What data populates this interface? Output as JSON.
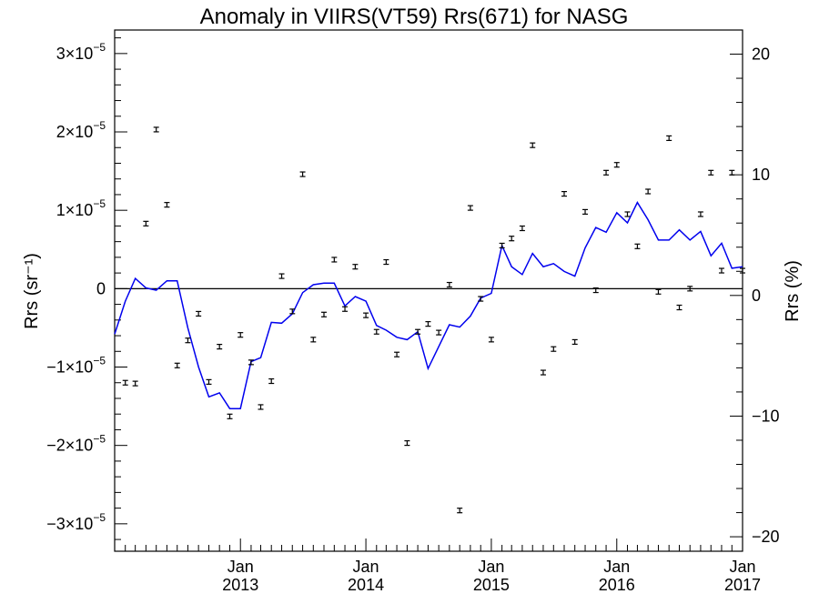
{
  "chart_data": {
    "type": "scatter",
    "title": "Anomaly in VIIRS(VT59) Rrs(671) for NASG",
    "ylabel_left": "Rrs (sr⁻¹)",
    "ylabel_right": "Rrs (%)",
    "xlabel": "",
    "xlim": [
      "2012-01-01",
      "2017-01-01"
    ],
    "ylim_left": [
      -3.35e-05,
      3.3e-05
    ],
    "ylim_right": [
      -21.2,
      22
    ],
    "x_ticks": [
      {
        "month": "Jan",
        "year": "2013",
        "date": "2013-01-01"
      },
      {
        "month": "Jan",
        "year": "2014",
        "date": "2014-01-01"
      },
      {
        "month": "Jan",
        "year": "2015",
        "date": "2015-01-01"
      },
      {
        "month": "Jan",
        "year": "2016",
        "date": "2016-01-01"
      },
      {
        "month": "Jan",
        "year": "2017",
        "date": "2017-01-01"
      }
    ],
    "y_ticks_left": [
      {
        "value": 3e-05,
        "mant": "3×10",
        "exp": "−5"
      },
      {
        "value": 2e-05,
        "mant": "2×10",
        "exp": "−5"
      },
      {
        "value": 1e-05,
        "mant": "1×10",
        "exp": "−5"
      },
      {
        "value": 0,
        "mant": "0",
        "exp": ""
      },
      {
        "value": -1e-05,
        "mant": "−1×10",
        "exp": "−5"
      },
      {
        "value": -2e-05,
        "mant": "−2×10",
        "exp": "−5"
      },
      {
        "value": -3e-05,
        "mant": "−3×10",
        "exp": "−5"
      }
    ],
    "y_ticks_right": [
      {
        "value": 20,
        "label": "20"
      },
      {
        "value": 10,
        "label": "10"
      },
      {
        "value": 0,
        "label": "0"
      },
      {
        "value": -10,
        "label": "−10"
      },
      {
        "value": -20,
        "label": "−20"
      }
    ],
    "series": [
      {
        "type": "scatter_errorbar",
        "axis": "left",
        "color": "#000000",
        "x": [
          "2012-02-01",
          "2012-03-01",
          "2012-04-01",
          "2012-05-01",
          "2012-06-01",
          "2012-07-01",
          "2012-08-01",
          "2012-09-01",
          "2012-10-01",
          "2012-11-01",
          "2012-12-01",
          "2013-01-01",
          "2013-02-01",
          "2013-03-01",
          "2013-04-01",
          "2013-05-01",
          "2013-06-01",
          "2013-07-01",
          "2013-08-01",
          "2013-09-01",
          "2013-10-01",
          "2013-11-01",
          "2013-12-01",
          "2014-01-01",
          "2014-02-01",
          "2014-03-01",
          "2014-04-01",
          "2014-05-01",
          "2014-06-01",
          "2014-07-01",
          "2014-08-01",
          "2014-09-01",
          "2014-10-01",
          "2014-11-01",
          "2014-12-01",
          "2015-01-01",
          "2015-02-01",
          "2015-03-01",
          "2015-04-01",
          "2015-05-01",
          "2015-06-01",
          "2015-07-01",
          "2015-08-01",
          "2015-09-01",
          "2015-10-01",
          "2015-11-01",
          "2015-12-01",
          "2016-01-01",
          "2016-02-01",
          "2016-03-01",
          "2016-04-01",
          "2016-05-01",
          "2016-06-01",
          "2016-07-01",
          "2016-08-01",
          "2016-09-01",
          "2016-10-01",
          "2016-11-01",
          "2016-12-01",
          "2017-01-01"
        ],
        "y": [
          -1.2e-05,
          -1.21e-05,
          8.3e-06,
          2.03e-05,
          1.07e-05,
          -9.8e-06,
          -6.6e-06,
          -3.2e-06,
          -1.19e-05,
          -7.4e-06,
          -1.63e-05,
          -5.9e-06,
          -9.4e-06,
          -1.51e-05,
          -1.18e-05,
          1.6e-06,
          -2.9e-06,
          1.46e-05,
          -6.5e-06,
          -3.3e-06,
          3.7e-06,
          -2.6e-06,
          2.8e-06,
          -3.4e-06,
          -5.5e-06,
          3.4e-06,
          -8.4e-06,
          -1.97e-05,
          -5.5e-06,
          -4.5e-06,
          -5.6e-06,
          5e-07,
          -2.83e-05,
          1.03e-05,
          -1.3e-06,
          -6.5e-06,
          5.5e-06,
          6.4e-06,
          7.7e-06,
          1.83e-05,
          -1.07e-05,
          -7.7e-06,
          1.21e-05,
          -6.8e-06,
          9.8e-06,
          -2e-07,
          1.48e-05,
          1.58e-05,
          9.5e-06,
          5.4e-06,
          1.24e-05,
          -4e-07,
          1.92e-05,
          -2.4e-06,
          0.0,
          9.5e-06,
          1.48e-05,
          2.3e-06,
          1.48e-05,
          2.3e-06
        ]
      },
      {
        "type": "line",
        "axis": "left",
        "color": "#0000ee",
        "x": [
          "2012-01-01",
          "2012-02-01",
          "2012-03-01",
          "2012-04-01",
          "2012-05-01",
          "2012-06-01",
          "2012-07-01",
          "2012-08-01",
          "2012-09-01",
          "2012-10-01",
          "2012-11-01",
          "2012-12-01",
          "2013-01-01",
          "2013-02-01",
          "2013-03-01",
          "2013-04-01",
          "2013-05-01",
          "2013-06-01",
          "2013-07-01",
          "2013-08-01",
          "2013-09-01",
          "2013-10-01",
          "2013-11-01",
          "2013-12-01",
          "2014-01-01",
          "2014-02-01",
          "2014-03-01",
          "2014-04-01",
          "2014-05-01",
          "2014-06-01",
          "2014-07-01",
          "2014-08-01",
          "2014-09-01",
          "2014-10-01",
          "2014-11-01",
          "2014-12-01",
          "2015-01-01",
          "2015-02-01",
          "2015-03-01",
          "2015-04-01",
          "2015-05-01",
          "2015-06-01",
          "2015-07-01",
          "2015-08-01",
          "2015-09-01",
          "2015-10-01",
          "2015-11-01",
          "2015-12-01",
          "2016-01-01",
          "2016-02-01",
          "2016-03-01",
          "2016-04-01",
          "2016-05-01",
          "2016-06-01",
          "2016-07-01",
          "2016-08-01",
          "2016-09-01",
          "2016-10-01",
          "2016-11-01",
          "2016-12-01",
          "2017-01-01"
        ],
        "y": [
          -5.8e-06,
          -1.6e-06,
          1.3e-06,
          1e-07,
          -2e-07,
          1e-06,
          1e-06,
          -5e-06,
          -1e-05,
          -1.38e-05,
          -1.33e-05,
          -1.53e-05,
          -1.53e-05,
          -9.3e-06,
          -8.8e-06,
          -4.3e-06,
          -4.4e-06,
          -3.2e-06,
          -5e-07,
          5e-07,
          7e-07,
          7e-07,
          -2.2e-06,
          -1e-06,
          -1.6e-06,
          -4.7e-06,
          -5.3e-06,
          -6.2e-06,
          -6.5e-06,
          -5.5e-06,
          -1.02e-05,
          -7.4e-06,
          -4.6e-06,
          -4.9e-06,
          -3.5e-06,
          -1.2e-06,
          -6e-07,
          5.5e-06,
          2.8e-06,
          1.8e-06,
          4.5e-06,
          2.8e-06,
          3.2e-06,
          2.2e-06,
          1.6e-06,
          5.2e-06,
          7.8e-06,
          7.2e-06,
          9.7e-06,
          8.4e-06,
          1.1e-05,
          8.8e-06,
          6.2e-06,
          6.2e-06,
          7.5e-06,
          6.2e-06,
          7.3e-06,
          4.2e-06,
          5.8e-06,
          2.6e-06,
          2.8e-06
        ]
      },
      {
        "type": "hline",
        "axis": "left",
        "color": "#000000",
        "y": 0
      }
    ]
  }
}
